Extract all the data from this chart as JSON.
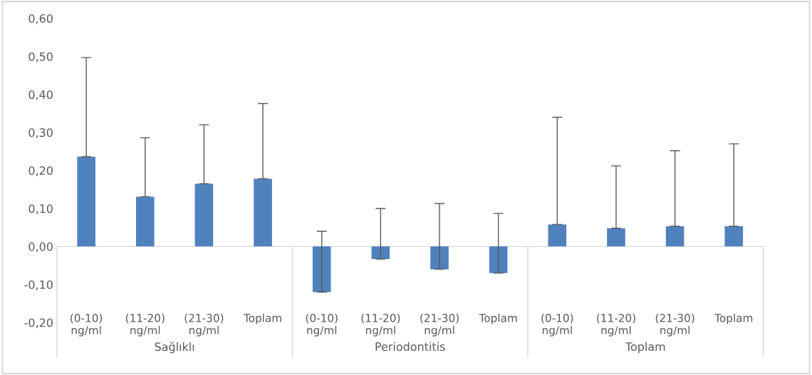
{
  "chart_data": {
    "type": "bar",
    "categories": [
      "(0-10)\nng/ml",
      "(11-20)\nng/ml",
      "(21-30)\nng/ml",
      "Toplam",
      "(0-10)\nng/ml",
      "(11-20)\nng/ml",
      "(21-30)\nng/ml",
      "Toplam",
      "(0-10)\nng/ml",
      "(11-20)\nng/ml",
      "(21-30)\nng/ml",
      "Toplam"
    ],
    "values": [
      0.236,
      0.131,
      0.165,
      0.178,
      -0.12,
      -0.033,
      -0.06,
      -0.07,
      0.058,
      0.048,
      0.053,
      0.053
    ],
    "errors": [
      [
        0.236,
        0.497
      ],
      [
        0.131,
        0.286
      ],
      [
        0.165,
        0.32
      ],
      [
        0.178,
        0.376
      ],
      [
        -0.12,
        0.04
      ],
      [
        -0.033,
        0.1
      ],
      [
        -0.06,
        0.113
      ],
      [
        -0.07,
        0.087
      ],
      [
        0.058,
        0.34
      ],
      [
        0.048,
        0.212
      ],
      [
        0.053,
        0.252
      ],
      [
        0.053,
        0.27
      ]
    ],
    "color": "#4f81bd",
    "ylim": [
      -0.2,
      0.6
    ],
    "yticks": [
      {
        "value": -0.2,
        "label": "-0,20"
      },
      {
        "value": -0.1,
        "label": "-0,10"
      },
      {
        "value": 0,
        "label": "0,00"
      },
      {
        "value": 0.1,
        "label": "0,10"
      },
      {
        "value": 0.2,
        "label": "0,20"
      },
      {
        "value": 0.3,
        "label": "0,30"
      },
      {
        "value": 0.4,
        "label": "0,40"
      },
      {
        "value": 0.5,
        "label": "0,50"
      },
      {
        "value": 0.6,
        "label": "0,60"
      }
    ],
    "annotations": [
      "Sağlıklı",
      "Periodontitis",
      "Toplam"
    ],
    "ref_lines": [
      {
        "axis": "y",
        "value": 0,
        "color": "#d9d9d9"
      }
    ],
    "grid": false,
    "legend": false
  }
}
